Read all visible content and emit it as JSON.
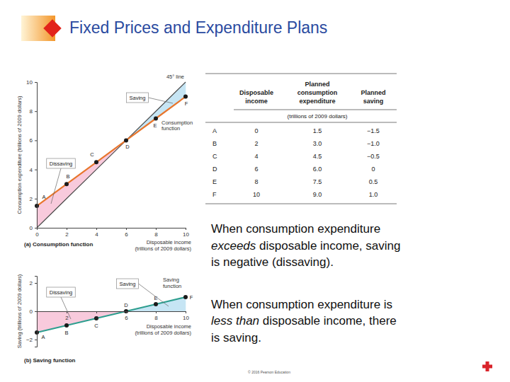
{
  "header": {
    "title": "Fixed Prices and Expenditure Plans"
  },
  "chart_data": [
    {
      "type": "line",
      "title": "(a) Consumption function",
      "x_label": "Disposable income (trillions of 2009 dollars)",
      "y_label": "Consumption expenditure (trillions of 2009 dollars)",
      "x": [
        0,
        2,
        4,
        6,
        8,
        10
      ],
      "point_labels": [
        "A",
        "B",
        "C",
        "D",
        "E",
        "F"
      ],
      "series": [
        {
          "name": "45° line",
          "color": "#4d4d4d",
          "values": [
            0,
            2,
            4,
            6,
            8,
            10
          ]
        },
        {
          "name": "Consumption function",
          "color": "#e8762d",
          "marker": "circle",
          "values": [
            1.5,
            3,
            4.5,
            6,
            7.5,
            9
          ]
        }
      ],
      "xlim": [
        0,
        10
      ],
      "ylim": [
        0,
        10
      ],
      "xticks": [
        0,
        2,
        4,
        6,
        8,
        10
      ],
      "yticks": [
        0,
        2,
        4,
        6,
        8,
        10
      ],
      "annotations": [
        "Saving",
        "Dissaving"
      ]
    },
    {
      "type": "line",
      "title": "(b) Saving function",
      "x_label": "Disposable income (trillions of 2009 dollars)",
      "y_label": "Saving (trillions of 2009 dollars)",
      "x": [
        0,
        2,
        4,
        6,
        8,
        10
      ],
      "point_labels": [
        "A",
        "B",
        "C",
        "D",
        "E",
        "F"
      ],
      "series": [
        {
          "name": "Saving function",
          "color": "#2e9e8f",
          "marker": "circle",
          "values": [
            -1.5,
            -1,
            -0.5,
            0,
            0.5,
            1
          ]
        }
      ],
      "xlim": [
        0,
        10
      ],
      "ylim": [
        -2.5,
        2.5
      ],
      "xticks": [
        2,
        4,
        6,
        8,
        10
      ],
      "yticks": [
        {
          "value": -2,
          "label": "−2"
        },
        0,
        2
      ],
      "annotations": [
        "Saving",
        "Dissaving"
      ]
    }
  ],
  "table": {
    "columns": [
      "Disposable income",
      "Planned consumption expenditure",
      "Planned saving"
    ],
    "units": "(trillions of 2009 dollars)",
    "rows": [
      [
        "A",
        "0",
        "1.5",
        "−1.5"
      ],
      [
        "B",
        "2",
        "3.0",
        "−1.0"
      ],
      [
        "C",
        "4",
        "4.5",
        "−0.5"
      ],
      [
        "D",
        "6",
        "6.0",
        "0"
      ],
      [
        "E",
        "8",
        "7.5",
        "0.5"
      ],
      [
        "F",
        "10",
        "9.0",
        "1.0"
      ]
    ]
  },
  "paragraphs": [
    [
      {
        "text": "When consumption expenditure "
      },
      {
        "text": "exceeds",
        "italic": true
      },
      {
        "text": " disposable income, saving is negative (dissaving)."
      }
    ],
    [
      {
        "text": "When consumption expenditure is "
      },
      {
        "text": "less than",
        "italic": true
      },
      {
        "text": " disposable income, there is saving."
      }
    ]
  ],
  "footer": "© 2016 Pearson Education"
}
